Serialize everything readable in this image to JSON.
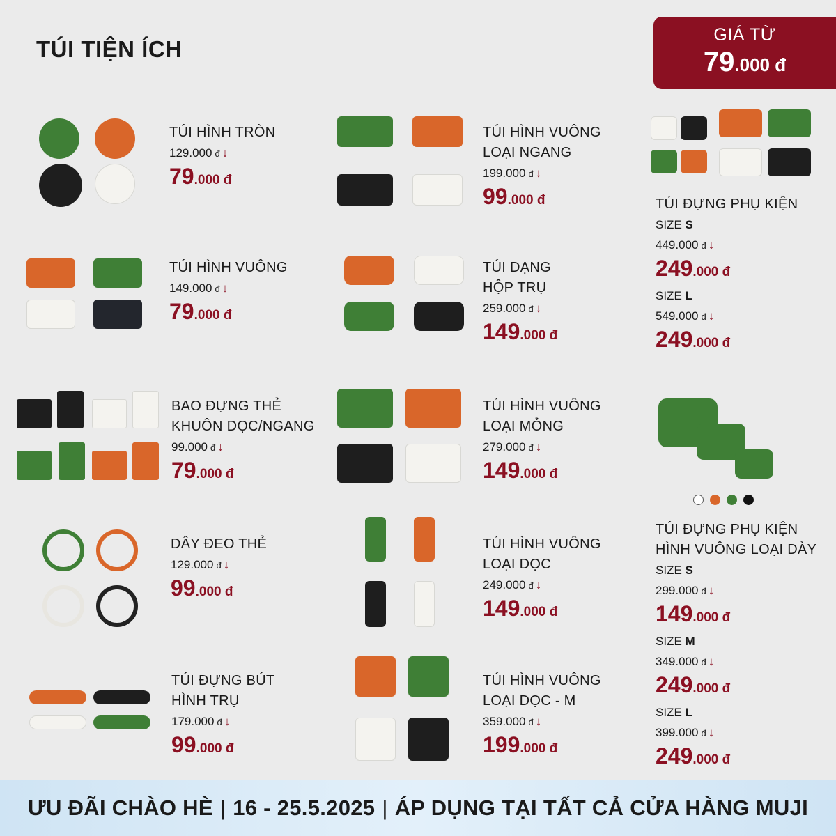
{
  "header": {
    "title": "TÚI TIỆN ÍCH",
    "badge_label": "GIÁ TỪ",
    "badge_amount_big": "79",
    "badge_amount_small": ".000 đ"
  },
  "products": {
    "p1": {
      "name1": "TÚI HÌNH TRÒN",
      "old": "129.000",
      "new_big": "79",
      "new_small": ".000 đ"
    },
    "p2": {
      "name1": "TÚI HÌNH VUÔNG",
      "name2": "LOẠI NGANG",
      "old": "199.000",
      "new_big": "99",
      "new_small": ".000 đ"
    },
    "p3": {
      "name1": "TÚI ĐỰNG PHỤ KIỆN",
      "size1": "S",
      "old1": "449.000",
      "new1_big": "249",
      "new1_small": ".000 đ",
      "size2": "L",
      "old2": "549.000",
      "new2_big": "249",
      "new2_small": ".000 đ"
    },
    "p4": {
      "name1": "TÚI HÌNH VUÔNG",
      "old": "149.000",
      "new_big": "79",
      "new_small": ".000 đ"
    },
    "p5": {
      "name1": "TÚI DẠNG",
      "name2": "HỘP TRỤ",
      "old": "259.000",
      "new_big": "149",
      "new_small": ".000 đ"
    },
    "p6": {
      "name1": "BAO ĐỰNG THẺ",
      "name2": "KHUÔN DỌC/NGANG",
      "old": "99.000",
      "new_big": "79",
      "new_small": ".000 đ"
    },
    "p7": {
      "name1": "TÚI HÌNH VUÔNG",
      "name2": "LOẠI MỎNG",
      "old": "279.000",
      "new_big": "149",
      "new_small": ".000 đ"
    },
    "p8": {
      "name1": "TÚI ĐỰNG PHỤ KIỆN",
      "name2": "HÌNH VUÔNG LOẠI DÀY",
      "size1": "S",
      "old1": "299.000",
      "new1_big": "149",
      "new1_small": ".000 đ",
      "size2": "M",
      "old2": "349.000",
      "new2_big": "249",
      "new2_small": ".000 đ",
      "size3": "L",
      "old3": "399.000",
      "new3_big": "249",
      "new3_small": ".000 đ"
    },
    "p9": {
      "name1": "DÂY ĐEO THẺ",
      "old": "129.000",
      "new_big": "99",
      "new_small": ".000 đ"
    },
    "p10": {
      "name1": "TÚI HÌNH VUÔNG",
      "name2": "LOẠI DỌC",
      "old": "249.000",
      "new_big": "149",
      "new_small": ".000 đ"
    },
    "p11": {
      "name1": "TÚI ĐỰNG BÚT",
      "name2": "HÌNH TRỤ",
      "old": "179.000",
      "new_big": "99",
      "new_small": ".000 đ"
    },
    "p12": {
      "name1": "TÚI HÌNH VUÔNG",
      "name2": "LOẠI DỌC - M",
      "old": "359.000",
      "new_big": "199",
      "new_small": ".000 đ"
    }
  },
  "labels": {
    "size_prefix": "SIZE",
    "currency": "đ",
    "down_arrow": "↓"
  },
  "swatches": [
    "#ffffff",
    "#d9662a",
    "#3f7f36",
    "#111111"
  ],
  "footer": {
    "part1": "ƯU ĐÃI CHÀO HÈ",
    "part2": "16 - 25.5.2025",
    "part3": "ÁP DỤNG TẠI TẤT CẢ CỬA HÀNG MUJI",
    "separator": "|"
  }
}
